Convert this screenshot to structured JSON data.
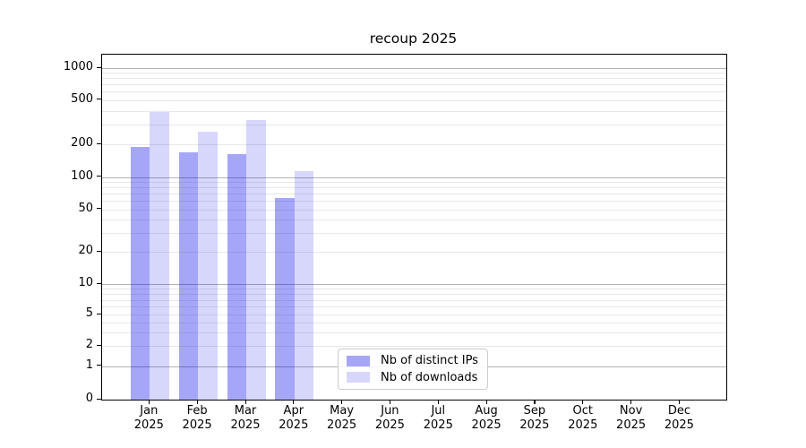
{
  "chart_data": {
    "type": "bar",
    "title": "recoup 2025",
    "categories": [
      "Jan",
      "Feb",
      "Mar",
      "Apr",
      "May",
      "Jun",
      "Jul",
      "Aug",
      "Sep",
      "Oct",
      "Nov",
      "Dec"
    ],
    "category_year_line": "2025",
    "series": [
      {
        "name": "Nb of distinct IPs",
        "color": "rgba(0,0,235,0.35)",
        "values": [
          188,
          170,
          163,
          64,
          0,
          0,
          0,
          0,
          0,
          0,
          0,
          0
        ]
      },
      {
        "name": "Nb of downloads",
        "color": "rgba(0,0,235,0.155)",
        "values": [
          387,
          258,
          327,
          113,
          0,
          0,
          0,
          0,
          0,
          0,
          0,
          0
        ]
      }
    ],
    "yscale": "symlog",
    "y_ticks": [
      1000,
      500,
      200,
      100,
      50,
      20,
      10,
      5,
      2,
      1,
      0
    ],
    "y_major_grid_values": [
      1,
      10,
      100,
      1000
    ],
    "ylim": [
      0,
      1350
    ],
    "grid": "horizontal",
    "legend_position": "inside-bottom-center",
    "colors": {
      "major_grid": "#b3b3b3",
      "minor_grid": "#e8e8e8",
      "axis": "#000000",
      "legend_border": "#cccccc"
    }
  }
}
